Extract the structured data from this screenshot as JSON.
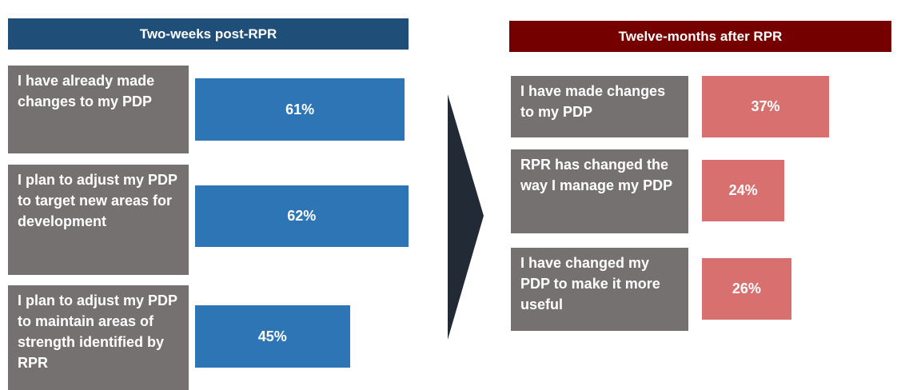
{
  "chart_data": [
    {
      "type": "bar",
      "title": "Two-weeks post-RPR",
      "categories": [
        "I have already made changes to my PDP",
        "I plan to adjust my PDP to target new areas for development",
        "I plan to adjust my PDP to maintain areas of strength identified by RPR"
      ],
      "values": [
        61,
        62,
        45
      ],
      "value_labels": [
        "61%",
        "62%",
        "45%"
      ],
      "color": "#2e75b6",
      "title_color": "#1f4e79"
    },
    {
      "type": "bar",
      "title": "Twelve-months after RPR",
      "categories": [
        "I have made changes to my PDP",
        "RPR has changed the way I manage my PDP",
        "I have changed my PDP to make it more useful"
      ],
      "values": [
        37,
        24,
        26
      ],
      "value_labels": [
        "37%",
        "24%",
        "26%"
      ],
      "color": "#d87070",
      "title_color": "#750000"
    }
  ]
}
